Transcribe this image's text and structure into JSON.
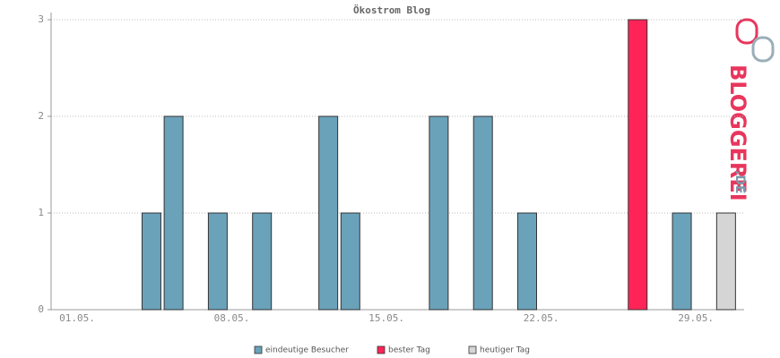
{
  "chart_data": {
    "type": "bar",
    "title": "Ökostrom Blog",
    "categories": [
      "01.05.",
      null,
      null,
      null,
      null,
      null,
      null,
      "08.05.",
      null,
      null,
      null,
      null,
      null,
      null,
      "15.05.",
      null,
      null,
      null,
      null,
      null,
      null,
      "22.05.",
      null,
      null,
      null,
      null,
      null,
      null,
      "29.05.",
      null
    ],
    "series": [
      {
        "name": "eindeutige Besucher",
        "color": "#6aa2ba",
        "values": [
          0,
          0,
          0,
          1,
          2,
          0,
          1,
          0,
          1,
          0,
          0,
          2,
          1,
          0,
          0,
          0,
          2,
          0,
          2,
          0,
          1,
          0,
          0,
          0,
          0,
          null,
          0,
          1,
          0,
          null
        ]
      },
      {
        "name": "bester Tag",
        "color": "#ff2457",
        "values": [
          null,
          null,
          null,
          null,
          null,
          null,
          null,
          null,
          null,
          null,
          null,
          null,
          null,
          null,
          null,
          null,
          null,
          null,
          null,
          null,
          null,
          null,
          null,
          null,
          null,
          3,
          null,
          null,
          null,
          null
        ]
      },
      {
        "name": "heutiger Tag",
        "color": "#d5d5d5",
        "values": [
          null,
          null,
          null,
          null,
          null,
          null,
          null,
          null,
          null,
          null,
          null,
          null,
          null,
          null,
          null,
          null,
          null,
          null,
          null,
          null,
          null,
          null,
          null,
          null,
          null,
          null,
          null,
          null,
          null,
          1
        ]
      }
    ],
    "ylim": [
      0,
      3
    ],
    "yticks": [
      0,
      1,
      2,
      3
    ],
    "grid": true,
    "logo": [
      "BLOGGEREI",
      ".DE"
    ]
  }
}
